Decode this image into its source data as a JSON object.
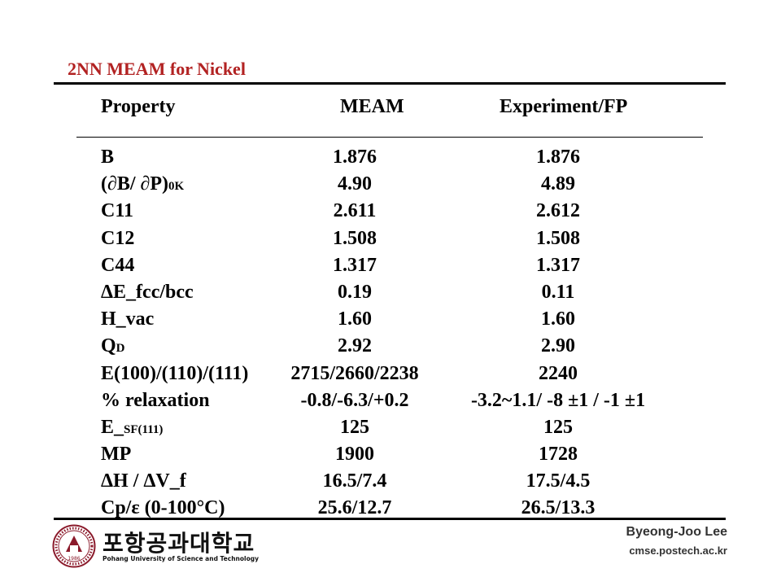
{
  "slide": {
    "title": "2NN MEAM for Nickel"
  },
  "table": {
    "headers": {
      "property": "Property",
      "meam": "MEAM",
      "experiment": "Experiment/FP"
    },
    "rows": [
      {
        "property": "B",
        "property_sub": "",
        "meam": "1.876",
        "experiment": "1.876"
      },
      {
        "property": "(∂B/ ∂P)",
        "property_sub": "0K",
        "meam": "4.90",
        "experiment": "4.89"
      },
      {
        "property": "C11",
        "property_sub": "",
        "meam": "2.611",
        "experiment": "2.612"
      },
      {
        "property": "C12",
        "property_sub": "",
        "meam": "1.508",
        "experiment": "1.508"
      },
      {
        "property": "C44",
        "property_sub": "",
        "meam": "1.317",
        "experiment": "1.317"
      },
      {
        "property": "ΔE_fcc/bcc",
        "property_sub": "",
        "meam": "0.19",
        "experiment": "0.11"
      },
      {
        "property": "H_vac",
        "property_sub": "",
        "meam": "1.60",
        "experiment": "1.60"
      },
      {
        "property": "Q",
        "property_sub": "D",
        "meam": "2.92",
        "experiment": "2.90"
      },
      {
        "property": "E(100)/(110)/(111)",
        "property_sub": "",
        "meam": "2715/2660/2238",
        "experiment": "2240"
      },
      {
        "property": "% relaxation",
        "property_sub": "",
        "meam": "-0.8/-6.3/+0.2",
        "experiment": "-3.2~1.1/ -8 ±1 / -1 ±1"
      },
      {
        "property": "E_",
        "property_sub": "SF(111)",
        "meam": "125",
        "experiment": "125"
      },
      {
        "property": "MP",
        "property_sub": "",
        "meam": "1900",
        "experiment": "1728"
      },
      {
        "property": "ΔH / ΔV_f",
        "property_sub": "",
        "meam": "16.5/7.4",
        "experiment": "17.5/4.5"
      },
      {
        "property": "Cp/ε (0-100°C)",
        "property_sub": "",
        "meam": "25.6/12.7",
        "experiment": "26.5/13.3"
      }
    ]
  },
  "footer": {
    "university_korean": "포항공과대학교",
    "university_english": "Pohang University of Science and Technology",
    "seal_year": "1986",
    "author": "Byeong-Joo Lee",
    "website": "cmse.postech.ac.kr"
  }
}
